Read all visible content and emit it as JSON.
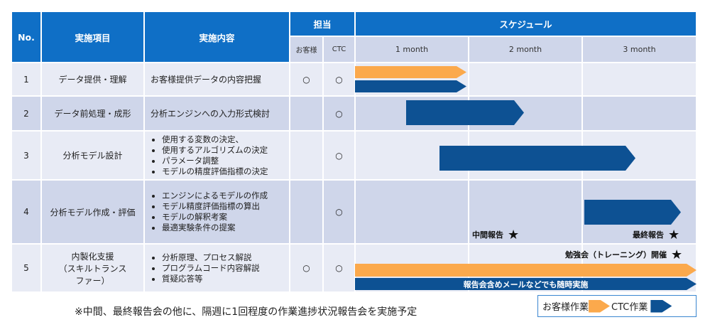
{
  "header": {
    "no": "No.",
    "item": "実施項目",
    "content": "実施内容",
    "owner": "担当",
    "customer": "お客様",
    "ctc": "CTC",
    "schedule": "スケジュール",
    "months": [
      "1 month",
      "2 month",
      "3 month"
    ]
  },
  "rows": [
    {
      "no": "1",
      "item": "データ提供・理解",
      "content": "お客様提供データの内容把握",
      "customer": "○",
      "ctc": "○"
    },
    {
      "no": "2",
      "item": "データ前処理・成形",
      "content": "分析エンジンへの入力形式検討",
      "customer": "",
      "ctc": "○"
    },
    {
      "no": "3",
      "item": "分析モデル設計",
      "bullets": [
        "使用する変数の決定、",
        "使用するアルゴリズムの決定",
        "パラメータ調整",
        "モデルの精度評価指標の決定"
      ],
      "customer": "",
      "ctc": "○"
    },
    {
      "no": "4",
      "item": "分析モデル作成・評価",
      "bullets": [
        "エンジンによるモデルの作成",
        "モデル精度評価指標の算出",
        "モデルの解釈考案",
        "最適実験条件の提案"
      ],
      "customer": "",
      "ctc": "○"
    },
    {
      "no": "5",
      "item": "内製化支援\n（スキルトランス\nファー）",
      "bullets": [
        "分析原理、プロセス解説",
        "プログラムコード内容解説",
        "質疑応答等"
      ],
      "customer": "○",
      "ctc": "○"
    }
  ],
  "milestones": {
    "interim": "中間報告",
    "final": "最終報告",
    "training": "勉強会（トレーニング）開催"
  },
  "row5_bar_label": "報告会含めメールなどでも随時実施",
  "footnote": "※中間、最終報告会の他に、隔週に1回程度の作業進捗状況報告会を実施予定",
  "legend": {
    "customer_work": "お客様作業",
    "ctc_work": "CTC作業"
  },
  "colors": {
    "header": "#0f6fc6",
    "customer_bar": "#fba94c",
    "ctc_bar": "#0d5193"
  }
}
